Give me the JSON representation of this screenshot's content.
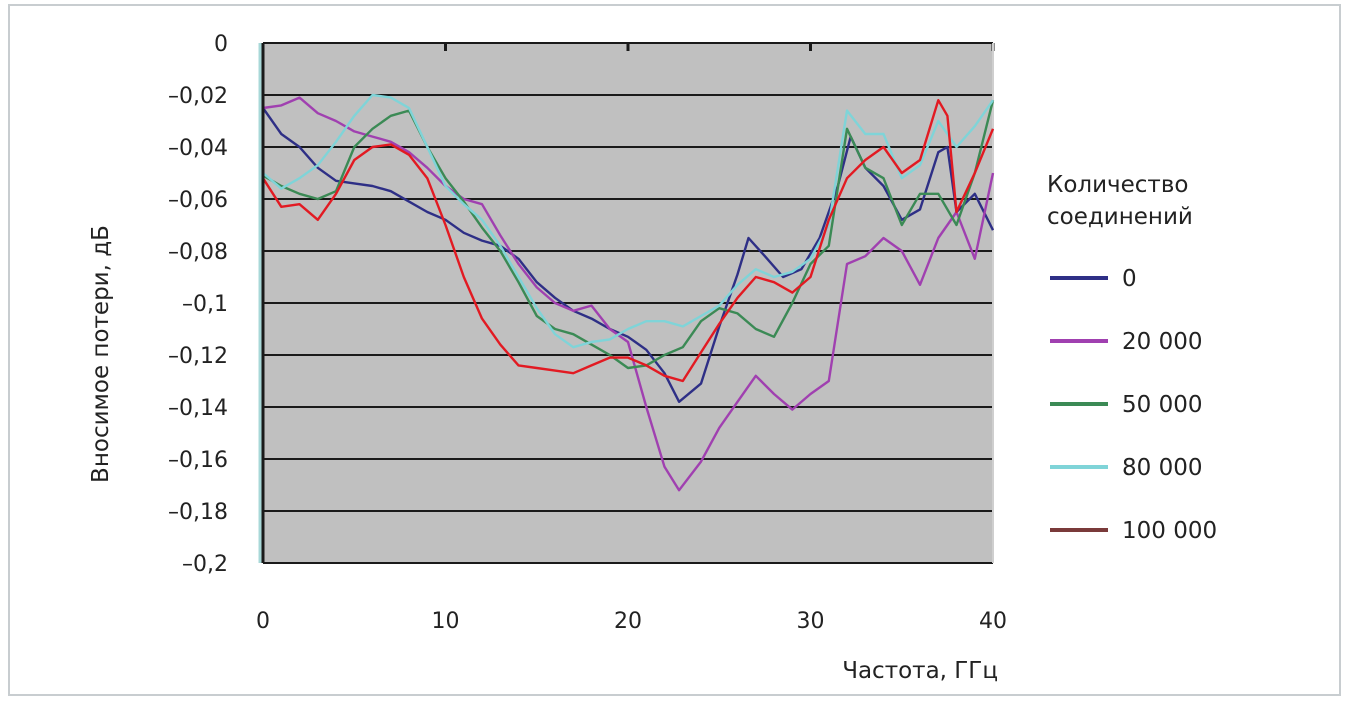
{
  "chart_data": {
    "type": "line",
    "title": "",
    "xlabel": "Частота, ГГц",
    "ylabel": "Вносимое потери, дБ",
    "xlim": [
      0,
      40
    ],
    "ylim": [
      -0.2,
      0
    ],
    "x_ticks": [
      "0",
      "10",
      "20",
      "30",
      "40"
    ],
    "y_ticks": [
      "0",
      "–0,02",
      "–0,04",
      "–0,06",
      "–0,08",
      "–0,1",
      "–0,12",
      "–0,14",
      "–0,16",
      "–0,18",
      "–0,2"
    ],
    "grid": true,
    "legend_title_line1": "Количество",
    "legend_title_line2": "соединений",
    "legend_position": "right",
    "plot_background": "#c0c0c0",
    "series": [
      {
        "name": "0",
        "color": "#2e2f86",
        "x": [
          0,
          1,
          2,
          3,
          4,
          5,
          6,
          7,
          8,
          9,
          10,
          11,
          12,
          13,
          14,
          15,
          16,
          17,
          18,
          19,
          20,
          21,
          22,
          22.8,
          24,
          25,
          26,
          26.6,
          27.5,
          28.5,
          29.5,
          30.5,
          31.5,
          32.2,
          33,
          34,
          35,
          36,
          37,
          37.5,
          38,
          39,
          40
        ],
        "y": [
          -0.025,
          -0.035,
          -0.04,
          -0.048,
          -0.053,
          -0.054,
          -0.055,
          -0.057,
          -0.061,
          -0.065,
          -0.068,
          -0.073,
          -0.076,
          -0.078,
          -0.083,
          -0.092,
          -0.098,
          -0.103,
          -0.106,
          -0.11,
          -0.113,
          -0.118,
          -0.127,
          -0.138,
          -0.131,
          -0.109,
          -0.089,
          -0.075,
          -0.082,
          -0.09,
          -0.087,
          -0.075,
          -0.055,
          -0.036,
          -0.048,
          -0.055,
          -0.068,
          -0.064,
          -0.042,
          -0.04,
          -0.065,
          -0.058,
          -0.072
        ]
      },
      {
        "name": "20 000",
        "color": "#a040b0",
        "x": [
          0,
          1,
          2,
          3,
          4,
          5,
          6,
          7,
          8,
          9,
          10,
          11,
          12,
          13,
          14,
          15,
          16,
          17,
          18,
          19,
          20,
          21,
          22,
          22.8,
          24,
          25,
          26,
          27,
          28,
          29,
          30,
          31,
          32,
          33,
          34,
          35,
          36,
          37,
          38,
          39,
          40
        ],
        "y": [
          -0.025,
          -0.024,
          -0.021,
          -0.027,
          -0.03,
          -0.034,
          -0.036,
          -0.038,
          -0.042,
          -0.048,
          -0.055,
          -0.06,
          -0.062,
          -0.074,
          -0.085,
          -0.094,
          -0.1,
          -0.103,
          -0.101,
          -0.11,
          -0.115,
          -0.14,
          -0.163,
          -0.172,
          -0.161,
          -0.148,
          -0.138,
          -0.128,
          -0.135,
          -0.141,
          -0.135,
          -0.13,
          -0.085,
          -0.082,
          -0.075,
          -0.08,
          -0.093,
          -0.075,
          -0.065,
          -0.083,
          -0.05
        ]
      },
      {
        "name": "50 000",
        "color": "#3b8a55",
        "x": [
          0,
          1,
          2,
          3,
          4,
          5,
          6,
          7,
          8,
          9,
          10,
          11,
          12,
          13,
          14,
          15,
          16,
          17,
          18,
          19,
          20,
          21,
          22,
          23,
          24,
          25,
          26,
          27,
          28,
          29,
          30,
          31,
          32,
          33,
          34,
          35,
          36,
          37,
          38,
          39,
          40
        ],
        "y": [
          -0.051,
          -0.055,
          -0.058,
          -0.06,
          -0.057,
          -0.04,
          -0.033,
          -0.028,
          -0.026,
          -0.04,
          -0.052,
          -0.061,
          -0.071,
          -0.08,
          -0.092,
          -0.105,
          -0.11,
          -0.112,
          -0.116,
          -0.12,
          -0.125,
          -0.124,
          -0.12,
          -0.117,
          -0.107,
          -0.102,
          -0.104,
          -0.11,
          -0.113,
          -0.1,
          -0.085,
          -0.078,
          -0.033,
          -0.048,
          -0.052,
          -0.07,
          -0.058,
          -0.058,
          -0.07,
          -0.05,
          -0.022
        ]
      },
      {
        "name": "80 000",
        "color": "#7fd4d8",
        "x": [
          0,
          1,
          2,
          3,
          4,
          5,
          6,
          7,
          8,
          9,
          10,
          11,
          12,
          13,
          14,
          15,
          16,
          17,
          18,
          19,
          20,
          21,
          22,
          23,
          24,
          25,
          26,
          27,
          28,
          29,
          30,
          31,
          32,
          33,
          34,
          35,
          36,
          37,
          38,
          39,
          40
        ],
        "y": [
          -0.05,
          -0.056,
          -0.052,
          -0.047,
          -0.038,
          -0.028,
          -0.02,
          -0.021,
          -0.025,
          -0.04,
          -0.055,
          -0.062,
          -0.068,
          -0.078,
          -0.09,
          -0.102,
          -0.112,
          -0.117,
          -0.115,
          -0.114,
          -0.11,
          -0.107,
          -0.107,
          -0.109,
          -0.105,
          -0.101,
          -0.093,
          -0.087,
          -0.09,
          -0.088,
          -0.083,
          -0.07,
          -0.026,
          -0.035,
          -0.035,
          -0.052,
          -0.047,
          -0.03,
          -0.04,
          -0.032,
          -0.022
        ]
      },
      {
        "name": "100 000",
        "color": "#e21a22",
        "legend_color": "#7a3a3a",
        "x": [
          0,
          1,
          2,
          3,
          4,
          5,
          6,
          7,
          8,
          9,
          10,
          11,
          12,
          13,
          14,
          15,
          16,
          17,
          18,
          19,
          20,
          21,
          22,
          23,
          24,
          25,
          26,
          27,
          28,
          29,
          30,
          31,
          32,
          33,
          34,
          35,
          36,
          37,
          37.5,
          38,
          39,
          40
        ],
        "y": [
          -0.052,
          -0.063,
          -0.062,
          -0.068,
          -0.058,
          -0.045,
          -0.04,
          -0.039,
          -0.043,
          -0.052,
          -0.07,
          -0.09,
          -0.106,
          -0.116,
          -0.124,
          -0.125,
          -0.126,
          -0.127,
          -0.124,
          -0.121,
          -0.121,
          -0.124,
          -0.128,
          -0.13,
          -0.119,
          -0.108,
          -0.098,
          -0.09,
          -0.092,
          -0.096,
          -0.09,
          -0.068,
          -0.052,
          -0.045,
          -0.04,
          -0.05,
          -0.045,
          -0.022,
          -0.028,
          -0.065,
          -0.05,
          -0.033
        ]
      }
    ]
  }
}
